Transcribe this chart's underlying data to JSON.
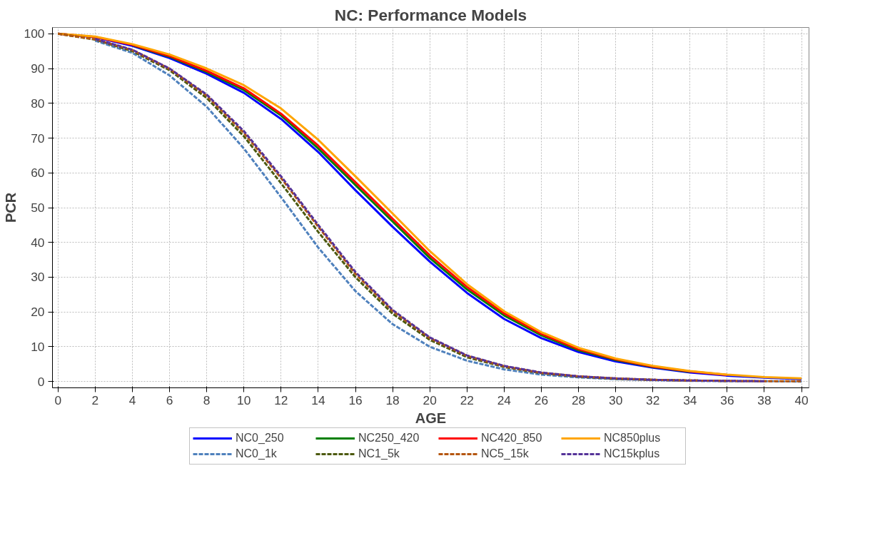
{
  "chart_data": {
    "type": "line",
    "title": "NC: Performance Models",
    "xlabel": "AGE",
    "ylabel": "PCR",
    "x": [
      0,
      2,
      4,
      6,
      8,
      10,
      12,
      14,
      16,
      18,
      20,
      22,
      24,
      26,
      28,
      30,
      32,
      34,
      36,
      38,
      40
    ],
    "xlim": [
      -0.3,
      40.4
    ],
    "ylim": [
      -1.8,
      101.8
    ],
    "xticks": [
      0,
      2,
      4,
      6,
      8,
      10,
      12,
      14,
      16,
      18,
      20,
      22,
      24,
      26,
      28,
      30,
      32,
      34,
      36,
      38,
      40
    ],
    "yticks": [
      0,
      10,
      20,
      30,
      40,
      50,
      60,
      70,
      80,
      90,
      100
    ],
    "grid": true,
    "legend": "bottom",
    "marker": "none",
    "series": [
      {
        "name": "NC0_250",
        "color": "#0000ff",
        "line_style": "solid",
        "values": [
          100,
          99,
          96.5,
          93,
          88.5,
          83,
          75.5,
          66,
          55,
          44.5,
          34.5,
          25.5,
          18,
          12.5,
          8.5,
          5.8,
          4,
          2.6,
          1.7,
          1.1,
          0.7
        ]
      },
      {
        "name": "NC250_420",
        "color": "#008000",
        "line_style": "solid",
        "values": [
          null,
          null,
          96.7,
          93.4,
          89,
          83.8,
          76.5,
          67,
          56.5,
          46,
          35.5,
          26.5,
          19,
          13.3,
          9,
          6.2,
          4.2,
          2.8,
          null,
          null,
          null
        ]
      },
      {
        "name": "NC420_850",
        "color": "#ff0000",
        "line_style": "solid",
        "values": [
          100,
          99.1,
          96.8,
          93.6,
          89.3,
          84.3,
          77,
          67.8,
          57.3,
          46.8,
          36.3,
          27.2,
          19.6,
          13.7,
          9.3,
          6.4,
          4.3,
          2.9,
          1.9,
          null,
          null
        ]
      },
      {
        "name": "NC850plus",
        "color": "#ffa500",
        "line_style": "solid",
        "values": [
          100,
          99.2,
          97,
          94,
          90,
          85.2,
          78.5,
          69.5,
          59,
          48.3,
          37.5,
          28,
          20.2,
          14.2,
          9.7,
          6.6,
          4.5,
          3,
          2,
          1.3,
          0.9
        ]
      },
      {
        "name": "NC0_1k",
        "color": "#4f81bd",
        "line_style": "dashed",
        "values": [
          null,
          98,
          94.5,
          88,
          79,
          67,
          53,
          38.5,
          26,
          16.5,
          10,
          6,
          3.5,
          2,
          1.2,
          0.7,
          0.4,
          0.2,
          0.1,
          0.1,
          0
        ]
      },
      {
        "name": "NC1_5k",
        "color": "#4d5a0f",
        "line_style": "dashed",
        "values": [
          100,
          98.3,
          95,
          89.5,
          81.5,
          70.5,
          57,
          43,
          30,
          19.5,
          12,
          7,
          4.2,
          2.4,
          1.4,
          0.8,
          0.5,
          0.3,
          0.2,
          null,
          null
        ]
      },
      {
        "name": "NC5_15k",
        "color": "#b5560f",
        "line_style": "dashed",
        "values": [
          100,
          98.4,
          95.3,
          89.9,
          82.2,
          71.5,
          58.5,
          44.5,
          31,
          20.3,
          12.5,
          7.4,
          4.4,
          2.5,
          1.5,
          0.9,
          0.5,
          0.3,
          0.2,
          0.1,
          0.1
        ]
      },
      {
        "name": "NC15kplus",
        "color": "#553399",
        "line_style": "dashed",
        "values": [
          null,
          98.5,
          95.4,
          90,
          82.5,
          72,
          59,
          45,
          31.5,
          20.6,
          12.7,
          7.5,
          4.5,
          2.6,
          1.5,
          0.9,
          0.5,
          0.3,
          0.2,
          0.1,
          null
        ]
      }
    ]
  }
}
